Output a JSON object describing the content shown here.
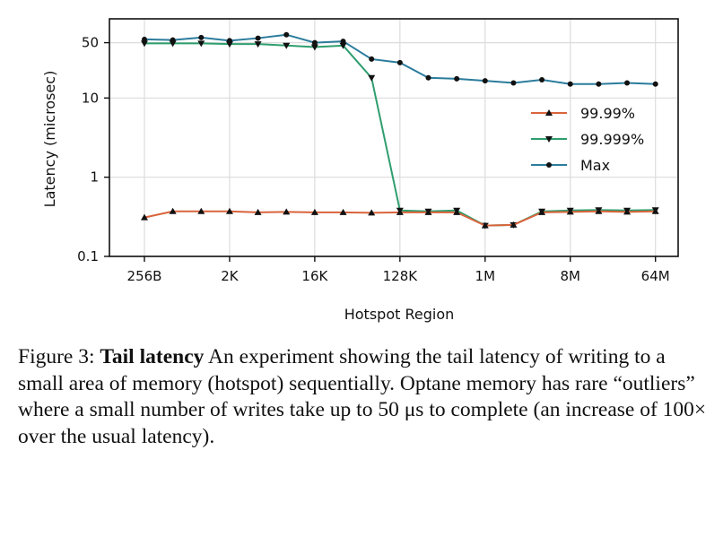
{
  "chart_data": {
    "type": "line",
    "xlabel": "Hotspot Region",
    "ylabel": "Latency (microsec)",
    "yscale": "log",
    "ylim": [
      0.1,
      100
    ],
    "grid": true,
    "legend_position": "center-right",
    "x_ticks": [
      "256B",
      "2K",
      "16K",
      "128K",
      "1M",
      "8M",
      "64M"
    ],
    "y_ticks": [
      "0.1",
      "1",
      "10",
      "50"
    ],
    "y_tick_values": [
      0.1,
      1,
      10,
      50
    ],
    "x": [
      "256B",
      "512B",
      "1K",
      "2K",
      "4K",
      "8K",
      "16K",
      "32K",
      "64K",
      "128K",
      "256K",
      "512K",
      "1M",
      "2M",
      "4M",
      "8M",
      "16M",
      "32M",
      "64M"
    ],
    "series": [
      {
        "name": "99.99%",
        "color": "#d9643c",
        "marker": "triangle-up",
        "values": [
          0.31,
          0.37,
          0.37,
          0.37,
          0.36,
          0.365,
          0.36,
          0.36,
          0.355,
          0.36,
          0.36,
          0.36,
          0.245,
          0.25,
          0.36,
          0.365,
          0.37,
          0.365,
          0.37
        ]
      },
      {
        "name": "99.999%",
        "color": "#2e9e6e",
        "marker": "triangle-down",
        "values": [
          49,
          49,
          49,
          48,
          48,
          46,
          44,
          46,
          18,
          0.38,
          0.37,
          0.38,
          0.245,
          0.25,
          0.37,
          0.38,
          0.385,
          0.38,
          0.385
        ]
      },
      {
        "name": "Max",
        "color": "#2b7c9c",
        "marker": "circle",
        "values": [
          55,
          54,
          58,
          53,
          57,
          63,
          50,
          52,
          31,
          28,
          18,
          17.5,
          16.5,
          15.5,
          17,
          15,
          15,
          15.5,
          15
        ]
      }
    ]
  },
  "caption": {
    "prefix": "Figure 3: ",
    "bold": "Tail latency",
    "text": " An experiment showing the tail latency of writing to a small area of memory (hotspot) sequentially. Optane memory has rare “outliers” where a small number of writes take up to 50 μs to complete (an increase of 100× over the usual latency)."
  }
}
